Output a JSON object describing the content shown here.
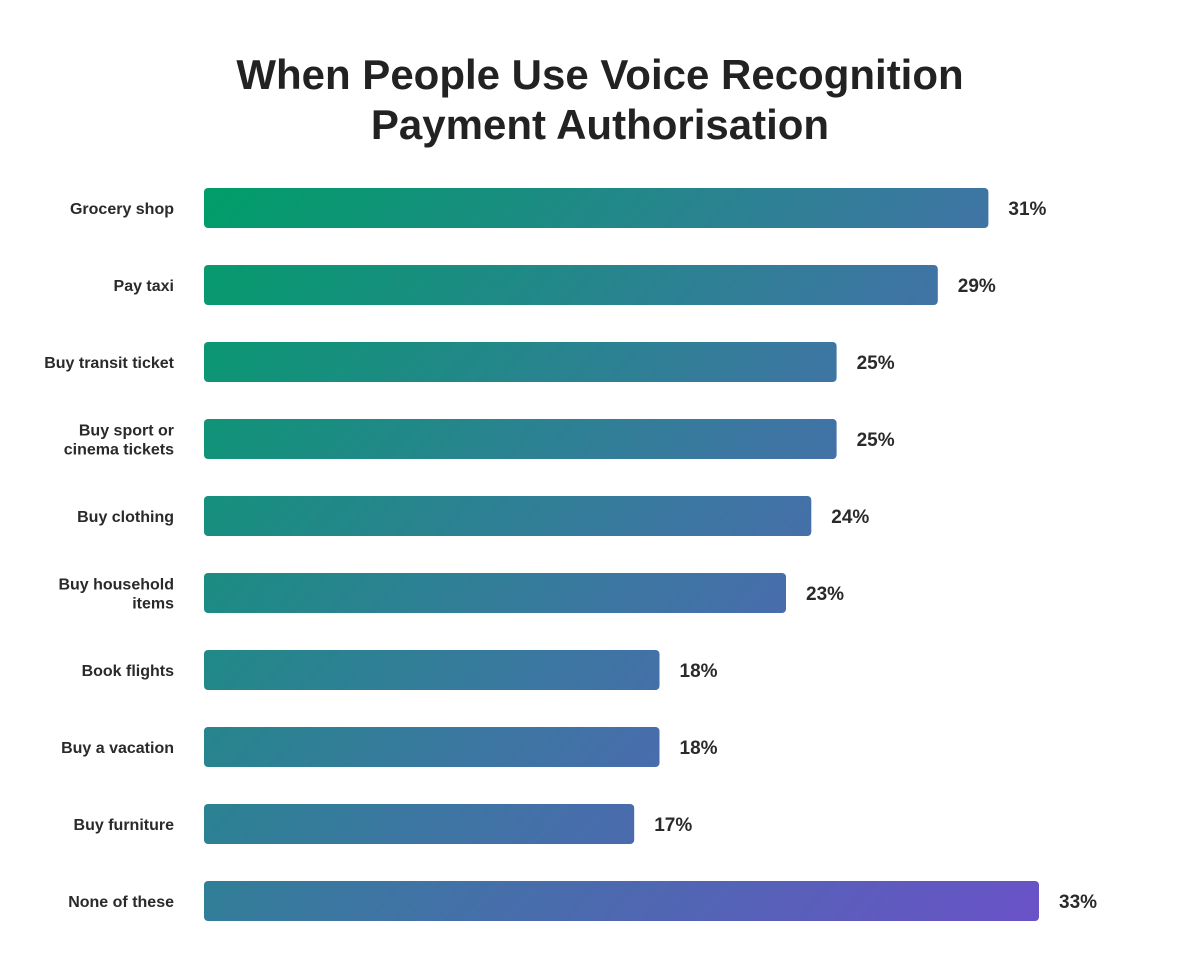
{
  "chart_data": {
    "type": "bar",
    "orientation": "horizontal",
    "title_lines": [
      "When People Use Voice Recognition",
      "Payment Authorisation"
    ],
    "categories": [
      [
        "Grocery shop"
      ],
      [
        "Pay taxi"
      ],
      [
        "Buy transit ticket"
      ],
      [
        "Buy sport or",
        "cinema tickets"
      ],
      [
        "Buy clothing"
      ],
      [
        "Buy household",
        "items"
      ],
      [
        "Book flights"
      ],
      [
        "Buy a vacation"
      ],
      [
        "Buy furniture"
      ],
      [
        "None of these"
      ]
    ],
    "values": [
      31,
      29,
      25,
      25,
      24,
      23,
      18,
      18,
      17,
      33
    ],
    "value_labels": [
      "31%",
      "29%",
      "25%",
      "25%",
      "24%",
      "23%",
      "18%",
      "18%",
      "17%",
      "33%"
    ],
    "unit": "%",
    "xlim": [
      0,
      33
    ],
    "grid": false,
    "legend": "none",
    "colors": {
      "gradient_start": "#009e68",
      "gradient_mid": "#3a78a0",
      "gradient_end": "#6a52c8"
    }
  }
}
